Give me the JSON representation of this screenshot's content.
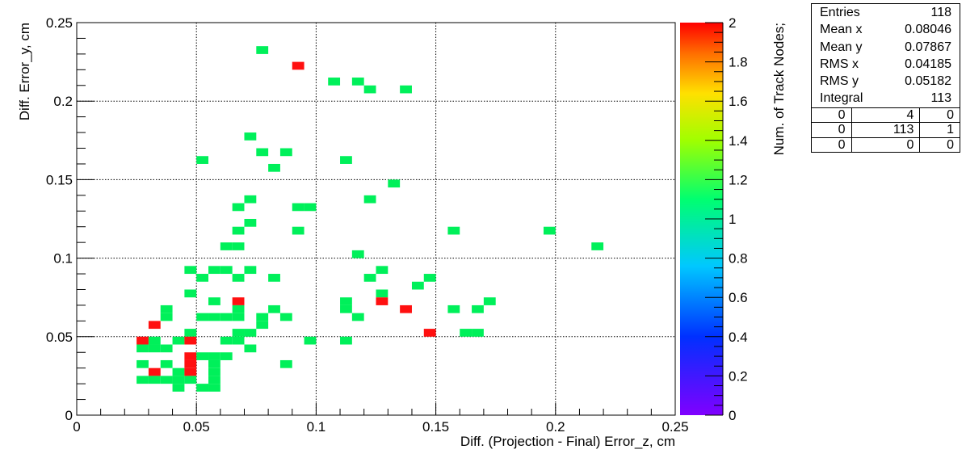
{
  "chart_data": {
    "type": "heatmap",
    "xlabel": "Diff. (Projection - Final) Error_z, cm",
    "ylabel": "Diff. Error_y, cm",
    "zlabel": "Num. of Track Nodes;",
    "xlim": [
      0,
      0.25
    ],
    "ylim": [
      0,
      0.25
    ],
    "zlim": [
      0,
      2
    ],
    "bin_width": 0.005,
    "x_ticks": [
      "0",
      "0.05",
      "0.1",
      "0.15",
      "0.2",
      "0.25"
    ],
    "y_ticks": [
      "0",
      "0.05",
      "0.1",
      "0.15",
      "0.2",
      "0.25"
    ],
    "z_ticks": [
      "0",
      "0.2",
      "0.4",
      "0.6",
      "0.8",
      "1",
      "1.2",
      "1.4",
      "1.6",
      "1.8",
      "2"
    ],
    "grid": true,
    "colors": {
      "one": "#00f05a",
      "two": "#ff1010"
    },
    "cells": [
      [
        0.075,
        0.23,
        1
      ],
      [
        0.09,
        0.22,
        2
      ],
      [
        0.105,
        0.21,
        1
      ],
      [
        0.115,
        0.21,
        1
      ],
      [
        0.12,
        0.205,
        1
      ],
      [
        0.135,
        0.205,
        1
      ],
      [
        0.07,
        0.175,
        1
      ],
      [
        0.075,
        0.165,
        1
      ],
      [
        0.085,
        0.165,
        1
      ],
      [
        0.05,
        0.16,
        1
      ],
      [
        0.11,
        0.16,
        1
      ],
      [
        0.08,
        0.155,
        1
      ],
      [
        0.13,
        0.145,
        1
      ],
      [
        0.07,
        0.135,
        1
      ],
      [
        0.12,
        0.135,
        1
      ],
      [
        0.065,
        0.13,
        1
      ],
      [
        0.09,
        0.13,
        1
      ],
      [
        0.095,
        0.13,
        1
      ],
      [
        0.07,
        0.12,
        1
      ],
      [
        0.065,
        0.115,
        1
      ],
      [
        0.09,
        0.115,
        1
      ],
      [
        0.155,
        0.115,
        1
      ],
      [
        0.195,
        0.115,
        1
      ],
      [
        0.06,
        0.105,
        1
      ],
      [
        0.065,
        0.105,
        1
      ],
      [
        0.215,
        0.105,
        1
      ],
      [
        0.115,
        0.1,
        1
      ],
      [
        0.045,
        0.09,
        1
      ],
      [
        0.055,
        0.09,
        1
      ],
      [
        0.06,
        0.09,
        1
      ],
      [
        0.07,
        0.09,
        1
      ],
      [
        0.125,
        0.09,
        1
      ],
      [
        0.05,
        0.085,
        1
      ],
      [
        0.065,
        0.085,
        1
      ],
      [
        0.08,
        0.085,
        1
      ],
      [
        0.12,
        0.085,
        1
      ],
      [
        0.145,
        0.085,
        1
      ],
      [
        0.14,
        0.08,
        1
      ],
      [
        0.045,
        0.075,
        1
      ],
      [
        0.125,
        0.075,
        1
      ],
      [
        0.055,
        0.07,
        1
      ],
      [
        0.065,
        0.07,
        2
      ],
      [
        0.11,
        0.07,
        1
      ],
      [
        0.125,
        0.07,
        2
      ],
      [
        0.17,
        0.07,
        1
      ],
      [
        0.035,
        0.065,
        1
      ],
      [
        0.065,
        0.065,
        1
      ],
      [
        0.08,
        0.065,
        1
      ],
      [
        0.11,
        0.065,
        1
      ],
      [
        0.135,
        0.065,
        2
      ],
      [
        0.155,
        0.065,
        1
      ],
      [
        0.165,
        0.065,
        1
      ],
      [
        0.035,
        0.06,
        1
      ],
      [
        0.05,
        0.06,
        1
      ],
      [
        0.055,
        0.06,
        1
      ],
      [
        0.06,
        0.06,
        1
      ],
      [
        0.065,
        0.06,
        1
      ],
      [
        0.075,
        0.06,
        1
      ],
      [
        0.085,
        0.06,
        1
      ],
      [
        0.115,
        0.06,
        1
      ],
      [
        0.03,
        0.055,
        2
      ],
      [
        0.075,
        0.055,
        1
      ],
      [
        0.045,
        0.05,
        1
      ],
      [
        0.065,
        0.05,
        1
      ],
      [
        0.07,
        0.05,
        1
      ],
      [
        0.145,
        0.05,
        2
      ],
      [
        0.16,
        0.05,
        1
      ],
      [
        0.165,
        0.05,
        1
      ],
      [
        0.025,
        0.045,
        2
      ],
      [
        0.03,
        0.045,
        1
      ],
      [
        0.04,
        0.045,
        1
      ],
      [
        0.045,
        0.045,
        2
      ],
      [
        0.06,
        0.045,
        1
      ],
      [
        0.065,
        0.045,
        1
      ],
      [
        0.095,
        0.045,
        1
      ],
      [
        0.11,
        0.045,
        1
      ],
      [
        0.025,
        0.04,
        1
      ],
      [
        0.03,
        0.04,
        1
      ],
      [
        0.035,
        0.04,
        1
      ],
      [
        0.07,
        0.04,
        1
      ],
      [
        0.045,
        0.035,
        2
      ],
      [
        0.05,
        0.035,
        1
      ],
      [
        0.055,
        0.035,
        1
      ],
      [
        0.06,
        0.035,
        1
      ],
      [
        0.025,
        0.03,
        1
      ],
      [
        0.035,
        0.03,
        1
      ],
      [
        0.045,
        0.03,
        2
      ],
      [
        0.055,
        0.03,
        1
      ],
      [
        0.085,
        0.03,
        1
      ],
      [
        0.03,
        0.025,
        2
      ],
      [
        0.04,
        0.025,
        1
      ],
      [
        0.045,
        0.025,
        2
      ],
      [
        0.055,
        0.025,
        1
      ],
      [
        0.025,
        0.02,
        1
      ],
      [
        0.03,
        0.02,
        1
      ],
      [
        0.035,
        0.02,
        1
      ],
      [
        0.04,
        0.02,
        1
      ],
      [
        0.045,
        0.02,
        1
      ],
      [
        0.055,
        0.02,
        1
      ],
      [
        0.04,
        0.015,
        1
      ],
      [
        0.05,
        0.015,
        1
      ],
      [
        0.055,
        0.015,
        1
      ]
    ]
  },
  "stats": {
    "rows": [
      {
        "label": "Entries",
        "value": "118"
      },
      {
        "label": "Mean x",
        "value": "0.08046"
      },
      {
        "label": "Mean y",
        "value": "0.07867"
      },
      {
        "label": "RMS x",
        "value": "0.04185"
      },
      {
        "label": "RMS y",
        "value": "0.05182"
      },
      {
        "label": "Integral",
        "value": "113"
      }
    ],
    "grid": [
      [
        "0",
        "4",
        "0"
      ],
      [
        "0",
        "113",
        "1"
      ],
      [
        "0",
        "0",
        "0"
      ]
    ]
  }
}
